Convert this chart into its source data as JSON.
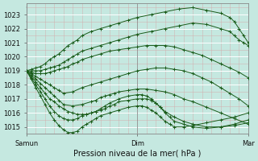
{
  "title": "Pression niveau de la mer( hPa )",
  "xlim": [
    0,
    96
  ],
  "ylim": [
    1014.5,
    1023.8
  ],
  "yticks": [
    1015,
    1016,
    1017,
    1018,
    1019,
    1020,
    1021,
    1022,
    1023
  ],
  "xtick_positions": [
    0,
    48,
    96
  ],
  "xtick_labels": [
    "Samun",
    "Dim",
    "Mar"
  ],
  "bg_color": "#c5e8e0",
  "line_color": "#1a5c1a",
  "marker_color": "#1a5c1a",
  "figsize": [
    3.2,
    2.0
  ],
  "dpi": 100,
  "series": [
    {
      "x": [
        0,
        2,
        4,
        6,
        8,
        10,
        12,
        14,
        16,
        18,
        20,
        22,
        24,
        28,
        32,
        36,
        40,
        44,
        48,
        54,
        60,
        66,
        72,
        78,
        84,
        88,
        90,
        92,
        94,
        96
      ],
      "y": [
        1019.0,
        1019.1,
        1019.2,
        1019.3,
        1019.5,
        1019.8,
        1020.0,
        1020.2,
        1020.5,
        1020.8,
        1021.0,
        1021.2,
        1021.5,
        1021.8,
        1022.0,
        1022.2,
        1022.4,
        1022.6,
        1022.8,
        1023.0,
        1023.2,
        1023.4,
        1023.5,
        1023.3,
        1023.1,
        1022.8,
        1022.5,
        1022.0,
        1021.5,
        1021.0
      ]
    },
    {
      "x": [
        0,
        2,
        4,
        6,
        8,
        10,
        12,
        14,
        16,
        18,
        20,
        22,
        24,
        28,
        32,
        36,
        40,
        44,
        48,
        54,
        60,
        66,
        72,
        78,
        84,
        88,
        90,
        92,
        94,
        96
      ],
      "y": [
        1019.0,
        1019.0,
        1019.0,
        1019.0,
        1019.1,
        1019.2,
        1019.3,
        1019.4,
        1019.6,
        1019.8,
        1020.0,
        1020.2,
        1020.4,
        1020.6,
        1020.8,
        1021.0,
        1021.2,
        1021.4,
        1021.6,
        1021.8,
        1022.0,
        1022.2,
        1022.4,
        1022.3,
        1022.0,
        1021.8,
        1021.5,
        1021.2,
        1021.0,
        1020.8
      ]
    },
    {
      "x": [
        0,
        2,
        4,
        6,
        8,
        10,
        12,
        14,
        16,
        18,
        20,
        22,
        24,
        28,
        32,
        36,
        40,
        44,
        48,
        52,
        56,
        60,
        64,
        68,
        72,
        76,
        80,
        84,
        88,
        92,
        96
      ],
      "y": [
        1019.0,
        1018.9,
        1018.8,
        1018.8,
        1018.8,
        1018.9,
        1019.0,
        1019.1,
        1019.2,
        1019.3,
        1019.5,
        1019.6,
        1019.8,
        1020.0,
        1020.2,
        1020.4,
        1020.5,
        1020.6,
        1020.7,
        1020.8,
        1020.8,
        1020.8,
        1020.7,
        1020.5,
        1020.3,
        1020.1,
        1019.8,
        1019.5,
        1019.2,
        1018.9,
        1018.5
      ]
    },
    {
      "x": [
        0,
        2,
        4,
        6,
        8,
        10,
        12,
        14,
        16,
        20,
        24,
        28,
        32,
        36,
        40,
        44,
        48,
        52,
        56,
        60,
        64,
        68,
        72,
        76,
        80,
        84,
        88,
        92,
        96
      ],
      "y": [
        1019.0,
        1018.8,
        1018.6,
        1018.4,
        1018.2,
        1018.0,
        1017.8,
        1017.6,
        1017.4,
        1017.5,
        1017.8,
        1018.0,
        1018.2,
        1018.4,
        1018.6,
        1018.8,
        1019.0,
        1019.1,
        1019.2,
        1019.2,
        1019.1,
        1019.0,
        1018.8,
        1018.5,
        1018.2,
        1017.8,
        1017.4,
        1017.0,
        1016.5
      ]
    },
    {
      "x": [
        0,
        2,
        4,
        6,
        8,
        10,
        12,
        14,
        16,
        20,
        24,
        28,
        30,
        32,
        34,
        36,
        38,
        40,
        44,
        48,
        52,
        56,
        60,
        64,
        68,
        72,
        78,
        84,
        90,
        96
      ],
      "y": [
        1019.0,
        1018.7,
        1018.4,
        1018.1,
        1017.8,
        1017.5,
        1017.2,
        1016.9,
        1016.6,
        1016.5,
        1016.6,
        1016.8,
        1016.9,
        1017.1,
        1017.2,
        1017.3,
        1017.4,
        1017.5,
        1017.6,
        1017.7,
        1017.7,
        1017.6,
        1017.5,
        1017.3,
        1017.0,
        1016.8,
        1016.4,
        1016.0,
        1015.6,
        1015.2
      ]
    },
    {
      "x": [
        0,
        2,
        4,
        6,
        8,
        10,
        12,
        14,
        16,
        18,
        20,
        22,
        24,
        26,
        28,
        30,
        32,
        34,
        36,
        38,
        40,
        44,
        48,
        50,
        52,
        54,
        56,
        58,
        60,
        64,
        68,
        72,
        78,
        84,
        90,
        96
      ],
      "y": [
        1019.0,
        1018.6,
        1018.2,
        1017.8,
        1017.4,
        1017.0,
        1016.8,
        1016.5,
        1016.3,
        1016.1,
        1016.0,
        1015.9,
        1015.9,
        1015.9,
        1016.0,
        1016.1,
        1016.2,
        1016.3,
        1016.5,
        1016.6,
        1016.8,
        1016.9,
        1017.0,
        1017.0,
        1017.0,
        1016.9,
        1016.7,
        1016.4,
        1016.1,
        1015.7,
        1015.4,
        1015.2,
        1015.0,
        1015.0,
        1015.1,
        1015.3
      ]
    },
    {
      "x": [
        0,
        2,
        4,
        6,
        8,
        10,
        12,
        14,
        16,
        18,
        20,
        22,
        24,
        26,
        28,
        30,
        32,
        34,
        36,
        40,
        44,
        48,
        50,
        52,
        54,
        56,
        58,
        60,
        62,
        64,
        68,
        72,
        78,
        84,
        90,
        96
      ],
      "y": [
        1019.0,
        1018.5,
        1018.0,
        1017.5,
        1017.0,
        1016.5,
        1016.1,
        1015.8,
        1015.6,
        1015.5,
        1015.5,
        1015.6,
        1015.8,
        1015.9,
        1016.0,
        1016.1,
        1016.3,
        1016.5,
        1016.7,
        1017.0,
        1017.2,
        1017.3,
        1017.3,
        1017.2,
        1017.0,
        1016.7,
        1016.4,
        1016.0,
        1015.7,
        1015.4,
        1015.2,
        1015.0,
        1014.9,
        1015.0,
        1015.2,
        1015.5
      ]
    },
    {
      "x": [
        0,
        2,
        4,
        6,
        8,
        10,
        12,
        14,
        16,
        18,
        20,
        22,
        24,
        26,
        28,
        30,
        32,
        36,
        40,
        44,
        48,
        50,
        52,
        54,
        56,
        58,
        60,
        62,
        64,
        68,
        72,
        78,
        84,
        90,
        96
      ],
      "y": [
        1019.0,
        1018.4,
        1017.8,
        1017.2,
        1016.6,
        1016.0,
        1015.5,
        1015.1,
        1014.8,
        1014.6,
        1014.6,
        1014.7,
        1015.0,
        1015.2,
        1015.4,
        1015.6,
        1015.8,
        1016.0,
        1016.2,
        1016.4,
        1016.5,
        1016.5,
        1016.4,
        1016.2,
        1016.0,
        1015.7,
        1015.4,
        1015.2,
        1015.0,
        1015.0,
        1015.1,
        1015.3,
        1015.5,
        1015.7,
        1016.0
      ]
    }
  ]
}
